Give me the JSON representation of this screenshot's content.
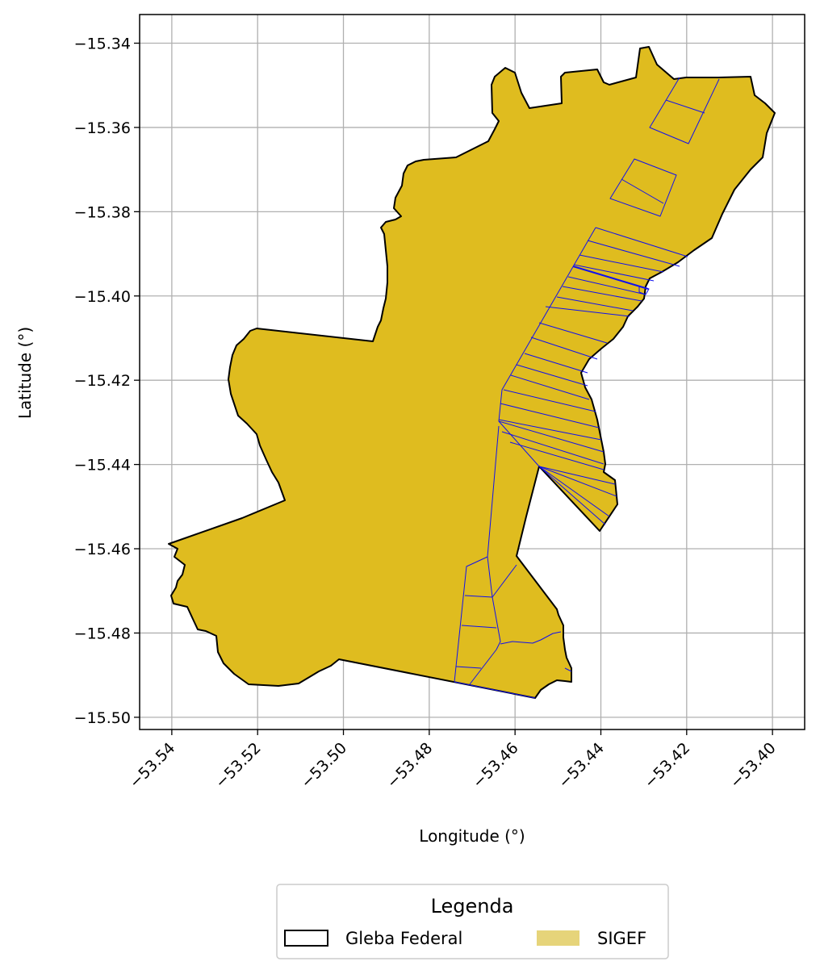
{
  "chart_data": {
    "type": "map",
    "xlabel": "Longitude (°)",
    "ylabel": "Latitude (°)",
    "xlim": [
      -53.5475,
      -53.3925
    ],
    "ylim": [
      -15.5029,
      -15.3332
    ],
    "xticks": [
      -53.54,
      -53.52,
      -53.5,
      -53.48,
      -53.46,
      -53.44,
      -53.42,
      -53.4
    ],
    "yticks": [
      -15.34,
      -15.36,
      -15.38,
      -15.4,
      -15.42,
      -15.44,
      -15.46,
      -15.48,
      -15.5
    ],
    "grid": true,
    "legend": {
      "title": "Legenda",
      "placement": "bottom-center",
      "entries": [
        {
          "label": "Gleba Federal",
          "style": "outline",
          "color": "#000000"
        },
        {
          "label": "SIGEF",
          "style": "fill",
          "color": "#e6d47a"
        }
      ]
    },
    "colors": {
      "gleba_fill": "#dfbc1f",
      "gleba_edge": "#000000",
      "sigef_edge": "#1010ee",
      "grid": "#b0b0b0"
    }
  }
}
